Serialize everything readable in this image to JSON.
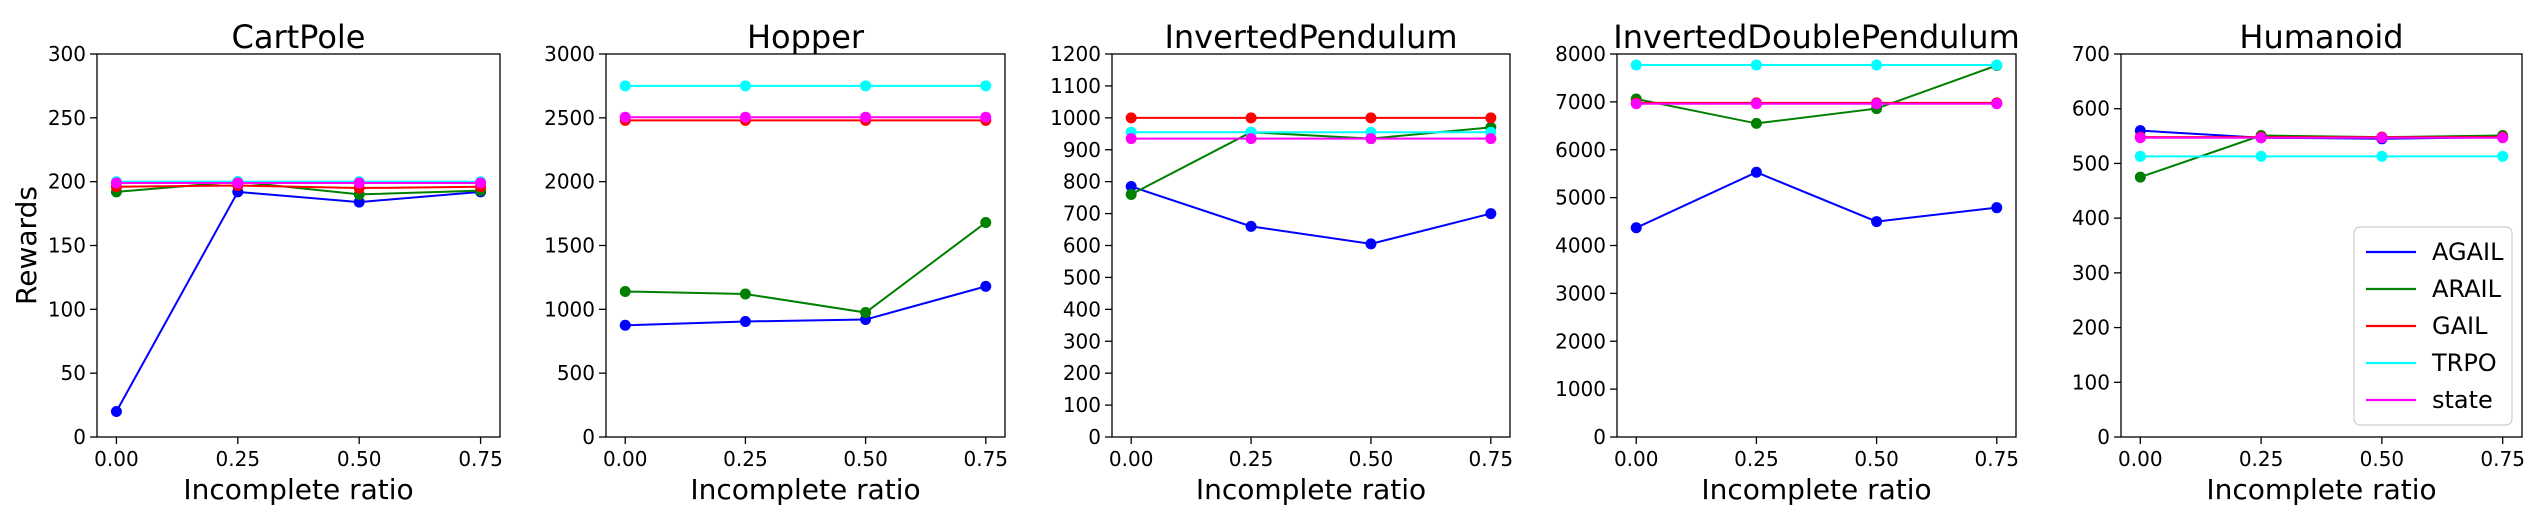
{
  "chart_data": [
    {
      "type": "line",
      "title": "CartPole",
      "xlabel": "Incomplete ratio",
      "ylabel": "Rewards",
      "x": [
        0.0,
        0.25,
        0.5,
        0.75
      ],
      "xticks": [
        "0.00",
        "0.25",
        "0.50",
        "0.75"
      ],
      "xlim": [
        -0.04,
        0.79
      ],
      "ylim": [
        0,
        300
      ],
      "yticks": [
        0,
        50,
        100,
        150,
        200,
        250,
        300
      ],
      "series": [
        {
          "name": "AGAIL",
          "color": "#0000ff",
          "values": [
            20,
            192,
            184,
            192
          ]
        },
        {
          "name": "ARAIL",
          "color": "#008000",
          "values": [
            192,
            200,
            190,
            193
          ]
        },
        {
          "name": "GAIL",
          "color": "#ff0000",
          "values": [
            196,
            197,
            195,
            196
          ]
        },
        {
          "name": "TRPO",
          "color": "#00ffff",
          "values": [
            200,
            200,
            200,
            200
          ]
        },
        {
          "name": "state",
          "color": "#ff00ff",
          "values": [
            199,
            199,
            199,
            199
          ]
        }
      ]
    },
    {
      "type": "line",
      "title": "Hopper",
      "xlabel": "Incomplete ratio",
      "ylabel": "",
      "x": [
        0.0,
        0.25,
        0.5,
        0.75
      ],
      "xticks": [
        "0.00",
        "0.25",
        "0.50",
        "0.75"
      ],
      "xlim": [
        -0.04,
        0.79
      ],
      "ylim": [
        0,
        3000
      ],
      "yticks": [
        0,
        500,
        1000,
        1500,
        2000,
        2500,
        3000
      ],
      "series": [
        {
          "name": "AGAIL",
          "color": "#0000ff",
          "values": [
            875,
            905,
            920,
            1180
          ]
        },
        {
          "name": "ARAIL",
          "color": "#008000",
          "values": [
            1140,
            1120,
            975,
            1680
          ]
        },
        {
          "name": "GAIL",
          "color": "#ff0000",
          "values": [
            2480,
            2480,
            2480,
            2480
          ]
        },
        {
          "name": "TRPO",
          "color": "#00ffff",
          "values": [
            2750,
            2750,
            2750,
            2750
          ]
        },
        {
          "name": "state",
          "color": "#ff00ff",
          "values": [
            2505,
            2505,
            2505,
            2505
          ]
        }
      ]
    },
    {
      "type": "line",
      "title": "InvertedPendulum",
      "xlabel": "Incomplete ratio",
      "ylabel": "",
      "x": [
        0.0,
        0.25,
        0.5,
        0.75
      ],
      "xticks": [
        "0.00",
        "0.25",
        "0.50",
        "0.75"
      ],
      "xlim": [
        -0.04,
        0.79
      ],
      "ylim": [
        0,
        1200
      ],
      "yticks": [
        0,
        100,
        200,
        300,
        400,
        500,
        600,
        700,
        800,
        900,
        1000,
        1100,
        1200
      ],
      "series": [
        {
          "name": "AGAIL",
          "color": "#0000ff",
          "values": [
            785,
            660,
            605,
            700
          ]
        },
        {
          "name": "ARAIL",
          "color": "#008000",
          "values": [
            760,
            955,
            935,
            970
          ]
        },
        {
          "name": "GAIL",
          "color": "#ff0000",
          "values": [
            1000,
            1000,
            1000,
            1000
          ]
        },
        {
          "name": "TRPO",
          "color": "#00ffff",
          "values": [
            955,
            955,
            955,
            955
          ]
        },
        {
          "name": "state",
          "color": "#ff00ff",
          "values": [
            935,
            935,
            935,
            935
          ]
        }
      ]
    },
    {
      "type": "line",
      "title": "InvertedDoublePendulum",
      "xlabel": "Incomplete ratio",
      "ylabel": "",
      "x": [
        0.0,
        0.25,
        0.5,
        0.75
      ],
      "xticks": [
        "0.00",
        "0.25",
        "0.50",
        "0.75"
      ],
      "xlim": [
        -0.04,
        0.79
      ],
      "ylim": [
        0,
        8000
      ],
      "yticks": [
        0,
        1000,
        2000,
        3000,
        4000,
        5000,
        6000,
        7000,
        8000
      ],
      "series": [
        {
          "name": "AGAIL",
          "color": "#0000ff",
          "values": [
            4370,
            5530,
            4500,
            4790
          ]
        },
        {
          "name": "ARAIL",
          "color": "#008000",
          "values": [
            7060,
            6550,
            6860,
            7760
          ]
        },
        {
          "name": "GAIL",
          "color": "#ff0000",
          "values": [
            6980,
            6980,
            6980,
            6980
          ]
        },
        {
          "name": "TRPO",
          "color": "#00ffff",
          "values": [
            7770,
            7770,
            7770,
            7770
          ]
        },
        {
          "name": "state",
          "color": "#ff00ff",
          "values": [
            6960,
            6960,
            6960,
            6960
          ]
        }
      ]
    },
    {
      "type": "line",
      "title": "Humanoid",
      "xlabel": "Incomplete ratio",
      "ylabel": "",
      "x": [
        0.0,
        0.25,
        0.5,
        0.75
      ],
      "xticks": [
        "0.00",
        "0.25",
        "0.50",
        "0.75"
      ],
      "xlim": [
        -0.04,
        0.79
      ],
      "ylim": [
        0,
        700
      ],
      "yticks": [
        0,
        100,
        200,
        300,
        400,
        500,
        600,
        700
      ],
      "series": [
        {
          "name": "AGAIL",
          "color": "#0000ff",
          "values": [
            560,
            547,
            545,
            548
          ]
        },
        {
          "name": "ARAIL",
          "color": "#008000",
          "values": [
            475,
            551,
            548,
            551
          ]
        },
        {
          "name": "GAIL",
          "color": "#ff0000",
          "values": [
            548,
            548,
            548,
            548
          ]
        },
        {
          "name": "TRPO",
          "color": "#00ffff",
          "values": [
            513,
            513,
            513,
            513
          ]
        },
        {
          "name": "state",
          "color": "#ff00ff",
          "values": [
            547,
            547,
            547,
            547
          ]
        }
      ],
      "legend": {
        "location": "lower-right",
        "entries": [
          "AGAIL",
          "ARAIL",
          "GAIL",
          "TRPO",
          "state"
        ]
      }
    }
  ]
}
